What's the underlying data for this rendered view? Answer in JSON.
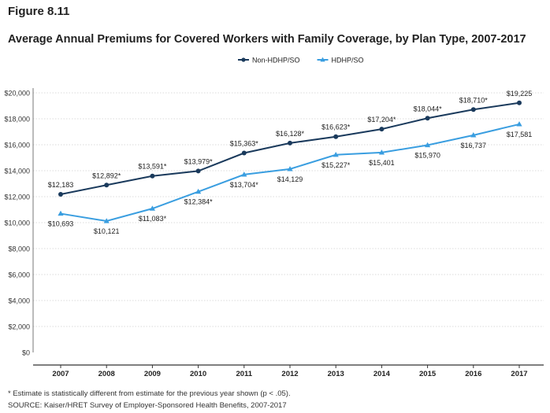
{
  "figure_label": "Figure 8.11",
  "chart_data": {
    "type": "line",
    "title": "Average Annual Premiums for Covered Workers with Family Coverage, by Plan Type, 2007-2017",
    "xlabel": "",
    "ylabel": "",
    "categories": [
      "2007",
      "2008",
      "2009",
      "2010",
      "2011",
      "2012",
      "2013",
      "2014",
      "2015",
      "2016",
      "2017"
    ],
    "ylim": [
      0,
      20000
    ],
    "yticks": [
      0,
      2000,
      4000,
      6000,
      8000,
      10000,
      12000,
      14000,
      16000,
      18000,
      20000
    ],
    "ytick_labels": [
      "$0",
      "$2,000",
      "$4,000",
      "$6,000",
      "$8,000",
      "$10,000",
      "$12,000",
      "$14,000",
      "$16,000",
      "$18,000",
      "$20,000"
    ],
    "grid": true,
    "legend_position": "top-right",
    "series": [
      {
        "name": "Non-HDHP/SO",
        "color": "#1a3a5c",
        "marker": "circle",
        "label_position": "above",
        "values": [
          12183,
          12892,
          13591,
          13979,
          15363,
          16128,
          16623,
          17204,
          18044,
          18710,
          19225
        ],
        "labels": [
          "$12,183",
          "$12,892*",
          "$13,591*",
          "$13,979*",
          "$15,363*",
          "$16,128*",
          "$16,623*",
          "$17,204*",
          "$18,044*",
          "$18,710*",
          "$19,225"
        ]
      },
      {
        "name": "HDHP/SO",
        "color": "#3a9ee0",
        "marker": "triangle",
        "label_position": "below",
        "values": [
          10693,
          10121,
          11083,
          12384,
          13704,
          14129,
          15227,
          15401,
          15970,
          16737,
          17581
        ],
        "labels": [
          "$10,693",
          "$10,121",
          "$11,083*",
          "$12,384*",
          "$13,704*",
          "$14,129",
          "$15,227*",
          "$15,401",
          "$15,970",
          "$16,737",
          "$17,581"
        ]
      }
    ]
  },
  "notes": {
    "footnote": "* Estimate is statistically different from estimate for the previous year shown (p < .05).",
    "source": "SOURCE: Kaiser/HRET Survey of Employer-Sponsored Health Benefits, 2007-2017"
  }
}
